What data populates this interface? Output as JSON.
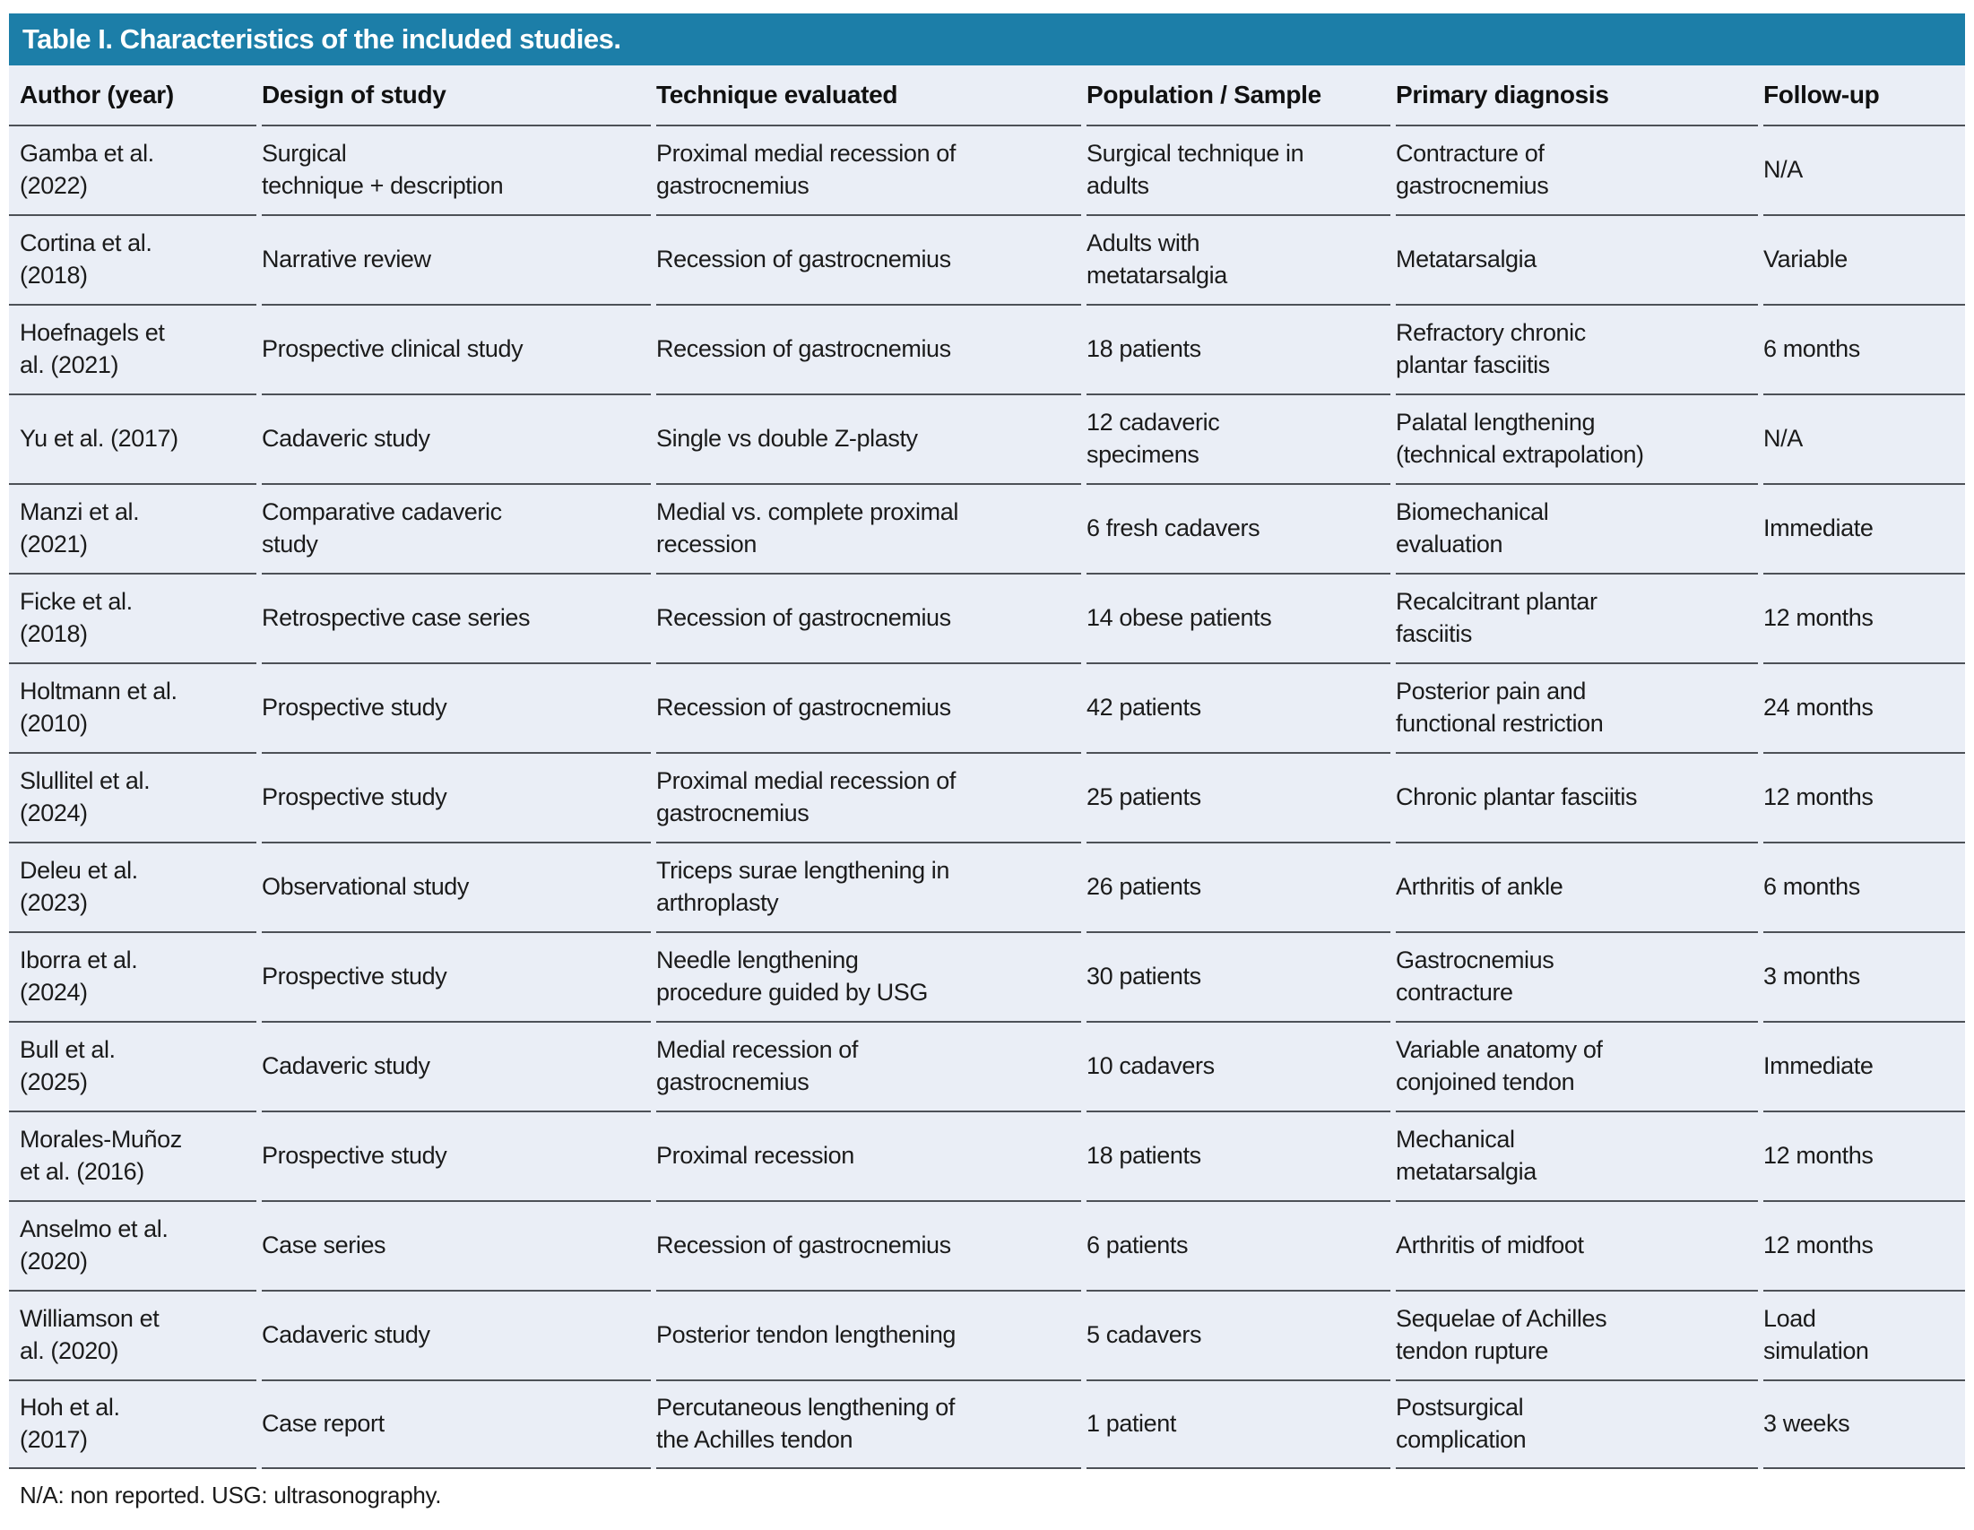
{
  "title": "Table I. Characteristics of the included studies.",
  "colors": {
    "header_bar": "#1c7ea8",
    "row_background": "#eaeef6",
    "row_border": "#4d5157",
    "title_text": "#ffffff"
  },
  "table": {
    "columns": [
      "Author (year)",
      "Design of study",
      "Technique evaluated",
      "Population / Sample",
      "Primary diagnosis",
      "Follow-up"
    ],
    "rows": [
      {
        "author": "Gamba et al.\n(2022)",
        "design": "Surgical\ntechnique + description",
        "technique": "Proximal medial recession of\ngastrocnemius",
        "population": "Surgical technique in\nadults",
        "diagnosis": "Contracture of\ngastrocnemius",
        "followup": "N/A"
      },
      {
        "author": "Cortina et al.\n(2018)",
        "design": "Narrative review",
        "technique": "Recession of gastrocnemius",
        "population": "Adults with\nmetatarsalgia",
        "diagnosis": "Metatarsalgia",
        "followup": "Variable"
      },
      {
        "author": "Hoefnagels et\nal. (2021)",
        "design": "Prospective clinical study",
        "technique": "Recession of gastrocnemius",
        "population": "18 patients",
        "diagnosis": "Refractory chronic\nplantar fasciitis",
        "followup": "6 months"
      },
      {
        "author": "Yu et al. (2017)",
        "design": "Cadaveric study",
        "technique": "Single vs double Z-plasty",
        "population": "12 cadaveric\nspecimens",
        "diagnosis": "Palatal lengthening\n(technical extrapolation)",
        "followup": "N/A"
      },
      {
        "author": "Manzi et al.\n(2021)",
        "design": "Comparative cadaveric\nstudy",
        "technique": "Medial vs. complete proximal\nrecession",
        "population": "6 fresh cadavers",
        "diagnosis": "Biomechanical\nevaluation",
        "followup": "Immediate"
      },
      {
        "author": "Ficke et al.\n(2018)",
        "design": "Retrospective case series",
        "technique": "Recession of gastrocnemius",
        "population": "14 obese patients",
        "diagnosis": "Recalcitrant plantar\nfasciitis",
        "followup": "12 months"
      },
      {
        "author": "Holtmann et al.\n(2010)",
        "design": "Prospective study",
        "technique": "Recession of gastrocnemius",
        "population": "42 patients",
        "diagnosis": "Posterior pain and\nfunctional restriction",
        "followup": "24 months"
      },
      {
        "author": "Slullitel et al.\n(2024)",
        "design": "Prospective study",
        "technique": "Proximal medial recession of\ngastrocnemius",
        "population": "25 patients",
        "diagnosis": "Chronic plantar fasciitis",
        "followup": "12 months"
      },
      {
        "author": "Deleu et al.\n(2023)",
        "design": "Observational study",
        "technique": "Triceps surae lengthening in\narthroplasty",
        "population": "26 patients",
        "diagnosis": "Arthritis of ankle",
        "followup": "6 months"
      },
      {
        "author": "Iborra et al.\n(2024)",
        "design": "Prospective study",
        "technique": "Needle lengthening\nprocedure guided by USG",
        "population": "30 patients",
        "diagnosis": "Gastrocnemius\ncontracture",
        "followup": "3 months"
      },
      {
        "author": "Bull et al.\n(2025)",
        "design": "Cadaveric study",
        "technique": "Medial recession of\ngastrocnemius",
        "population": "10 cadavers",
        "diagnosis": "Variable anatomy of\nconjoined tendon",
        "followup": "Immediate"
      },
      {
        "author": "Morales-Muñoz\net al. (2016)",
        "design": "Prospective study",
        "technique": "Proximal recession",
        "population": "18 patients",
        "diagnosis": "Mechanical\nmetatarsalgia",
        "followup": "12 months"
      },
      {
        "author": "Anselmo et al.\n(2020)",
        "design": "Case series",
        "technique": "Recession of gastrocnemius",
        "population": "6 patients",
        "diagnosis": "Arthritis of midfoot",
        "followup": "12 months"
      },
      {
        "author": "Williamson et\nal. (2020)",
        "design": "Cadaveric study",
        "technique": "Posterior tendon lengthening",
        "population": "5 cadavers",
        "diagnosis": "Sequelae of Achilles\ntendon rupture",
        "followup": "Load\nsimulation"
      },
      {
        "author": "Hoh et al.\n(2017)",
        "design": "Case report",
        "technique": "Percutaneous lengthening of\nthe Achilles tendon",
        "population": "1 patient",
        "diagnosis": "Postsurgical\ncomplication",
        "followup": "3 weeks"
      }
    ]
  },
  "footnote": "N/A: non reported. USG: ultrasonography."
}
